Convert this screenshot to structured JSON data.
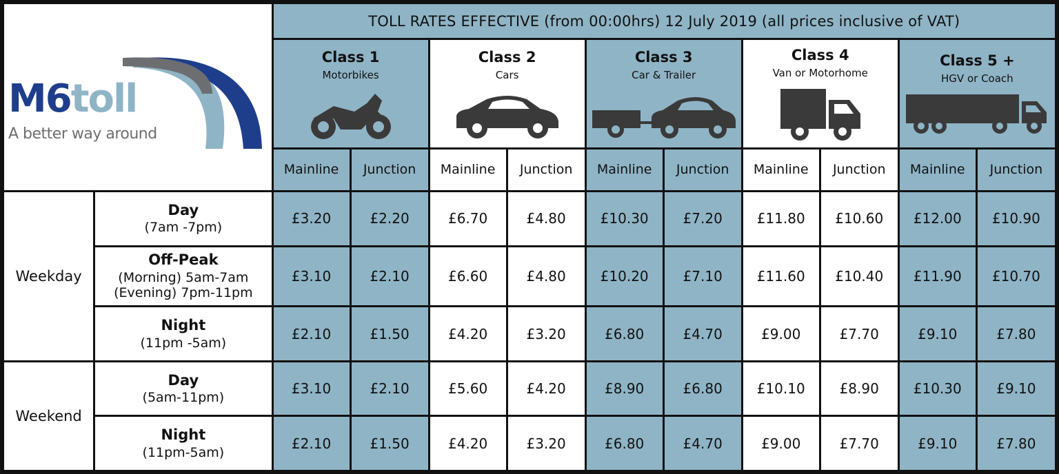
{
  "title": "TOLL RATES EFFECTIVE (from 00:00hrs) 12 July 2019 (all prices inclusive of VAT)",
  "logo": {
    "brand_main": "M6",
    "brand_soft": "toll",
    "tagline": "A better way around",
    "colors": {
      "dark_blue": "#1e3e8c",
      "light_blue": "#8fb4c6",
      "grey": "#6d6e71"
    }
  },
  "colors": {
    "blue_cell": "#8fb4c6",
    "white_cell": "#ffffff",
    "border": "#111111"
  },
  "classes": [
    {
      "name": "Class 1",
      "desc": "Motorbikes",
      "icon": "motorbike-icon"
    },
    {
      "name": "Class 2",
      "desc": "Cars",
      "icon": "car-icon"
    },
    {
      "name": "Class 3",
      "desc": "Car & Trailer",
      "icon": "car-trailer-icon"
    },
    {
      "name": "Class 4",
      "desc": "Van or Motorhome",
      "icon": "van-icon"
    },
    {
      "name": "Class 5 +",
      "desc": "HGV or Coach",
      "icon": "hgv-icon"
    }
  ],
  "sub_headers": {
    "mainline": "Mainline",
    "junction": "Junction"
  },
  "groups": {
    "weekday": "Weekday",
    "weekend": "Weekend"
  },
  "rows": [
    {
      "name": "Day",
      "time": "(7am -7pm)",
      "prices": [
        "£3.20",
        "£2.20",
        "£6.70",
        "£4.80",
        "£10.30",
        "£7.20",
        "£11.80",
        "£10.60",
        "£12.00",
        "£10.90"
      ]
    },
    {
      "name": "Off-Peak",
      "time": "(Morning) 5am-7am",
      "time2": "(Evening) 7pm-11pm",
      "prices": [
        "£3.10",
        "£2.10",
        "£6.60",
        "£4.80",
        "£10.20",
        "£7.10",
        "£11.60",
        "£10.40",
        "£11.90",
        "£10.70"
      ]
    },
    {
      "name": "Night",
      "time": "(11pm -5am)",
      "prices": [
        "£2.10",
        "£1.50",
        "£4.20",
        "£3.20",
        "£6.80",
        "£4.70",
        "£9.00",
        "£7.70",
        "£9.10",
        "£7.80"
      ]
    },
    {
      "name": "Day",
      "time": "(5am-11pm)",
      "prices": [
        "£3.10",
        "£2.10",
        "£5.60",
        "£4.20",
        "£8.90",
        "£6.80",
        "£10.10",
        "£8.90",
        "£10.30",
        "£9.10"
      ]
    },
    {
      "name": "Night",
      "time": "(11pm-5am)",
      "prices": [
        "£2.10",
        "£1.50",
        "£4.20",
        "£3.20",
        "£6.80",
        "£4.70",
        "£9.00",
        "£7.70",
        "£9.10",
        "£7.80"
      ]
    }
  ]
}
